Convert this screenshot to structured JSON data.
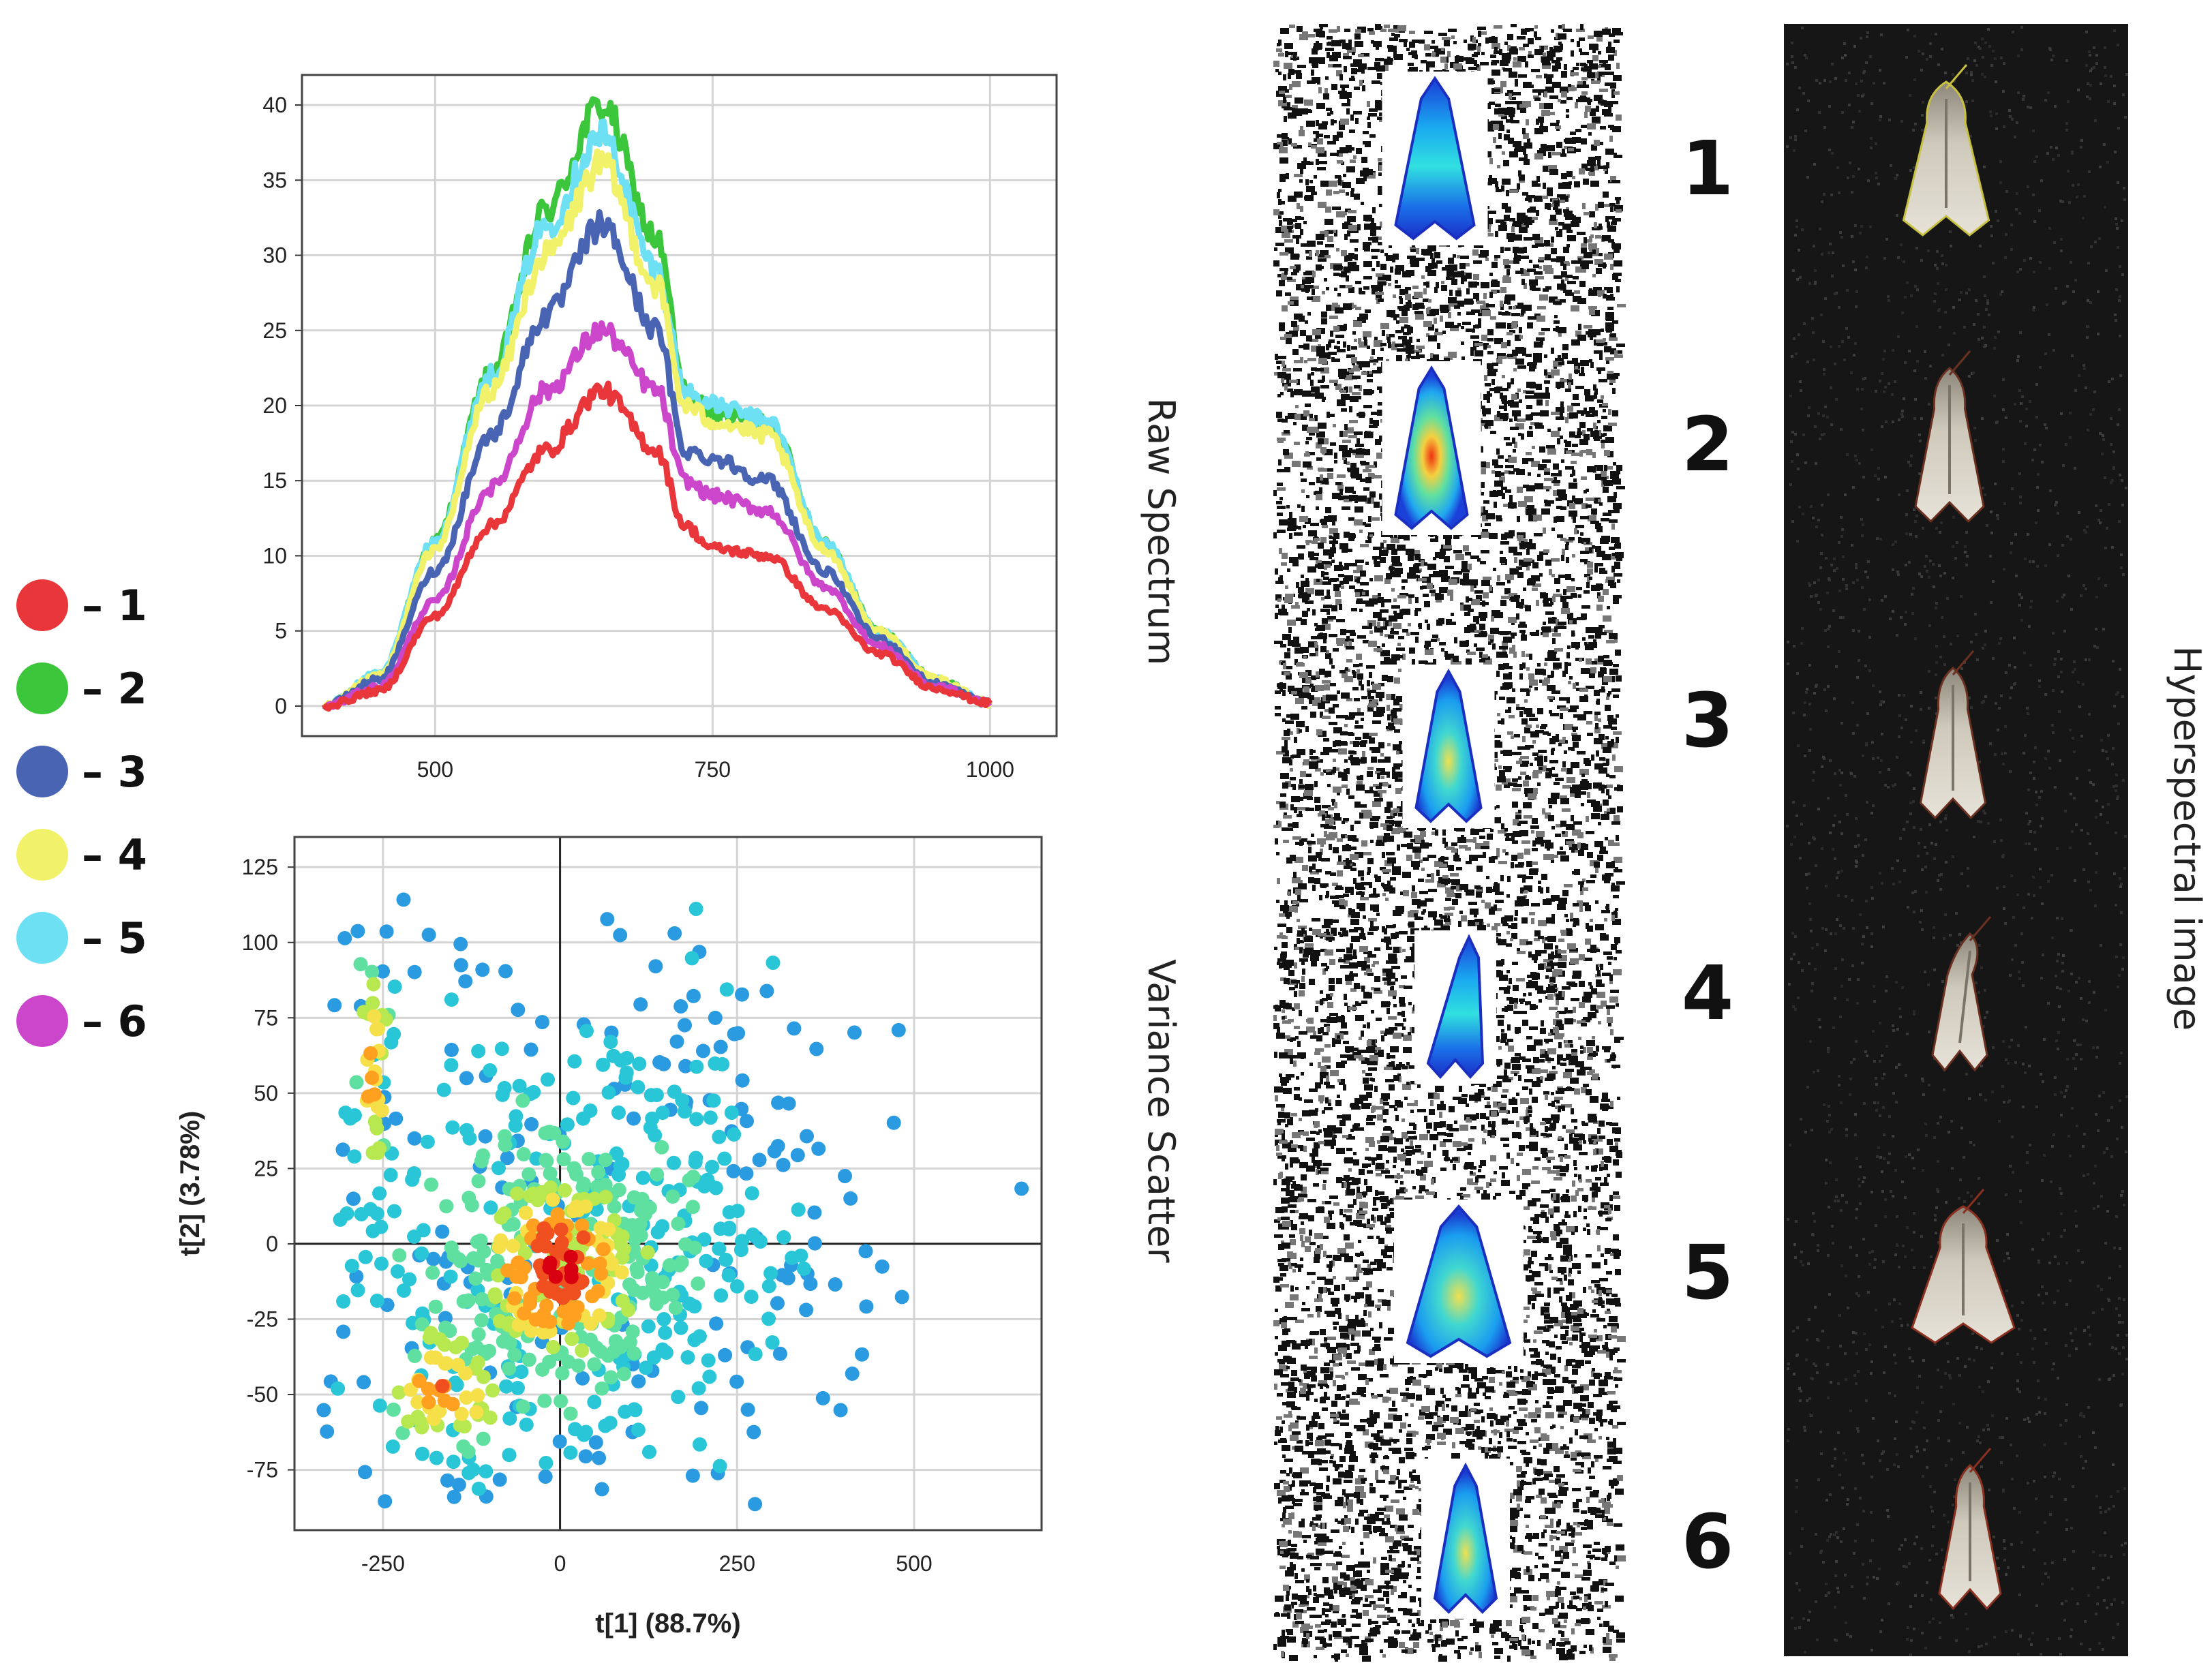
{
  "legend": [
    {
      "label": "– 1",
      "color": "#e8363b"
    },
    {
      "label": "– 2",
      "color": "#3cc63c"
    },
    {
      "label": "– 3",
      "color": "#4a64b4"
    },
    {
      "label": "– 4",
      "color": "#f2f26a"
    },
    {
      "label": "– 5",
      "color": "#6ee0f4"
    },
    {
      "label": "– 6",
      "color": "#cc46cc"
    }
  ],
  "side_labels": {
    "raw_spectrum": "Raw Spectrum",
    "variance_scatter": "Variance Scatter",
    "hyperspectral": "Hyperspectral image"
  },
  "sample_numbers": [
    "1",
    "2",
    "3",
    "4",
    "5",
    "6"
  ],
  "chart_data": [
    {
      "type": "line",
      "title": "",
      "xlabel": "",
      "ylabel": "",
      "xlim": [
        380,
        1060
      ],
      "ylim": [
        -2,
        42
      ],
      "xticks": [
        500,
        750,
        1000
      ],
      "yticks": [
        0,
        5,
        10,
        15,
        20,
        25,
        30,
        35,
        40
      ],
      "grid": true,
      "x": [
        400,
        450,
        500,
        550,
        600,
        650,
        700,
        725,
        750,
        800,
        850,
        900,
        950,
        1000
      ],
      "series": [
        {
          "name": "1",
          "color": "#e8363b",
          "values": [
            0,
            1,
            6,
            12,
            17,
            21,
            17,
            12,
            10.5,
            10,
            6.5,
            3.5,
            1.2,
            0.2
          ]
        },
        {
          "name": "2",
          "color": "#3cc63c",
          "values": [
            0,
            2,
            11,
            22,
            33,
            40,
            31,
            21,
            19.5,
            19,
            11,
            5,
            1.8,
            0.2
          ]
        },
        {
          "name": "3",
          "color": "#4a64b4",
          "values": [
            0,
            1.8,
            9,
            18,
            26,
            32,
            25,
            17,
            16.5,
            15,
            9,
            4.5,
            1.5,
            0.2
          ]
        },
        {
          "name": "4",
          "color": "#f2f26a",
          "values": [
            0,
            2,
            10.5,
            21,
            30,
            36,
            28,
            20,
            19,
            18,
            10.5,
            5,
            1.8,
            0.2
          ]
        },
        {
          "name": "5",
          "color": "#6ee0f4",
          "values": [
            0,
            2.2,
            11,
            22,
            32,
            38,
            29,
            21,
            20,
            19,
            11,
            5,
            1.8,
            0.2
          ]
        },
        {
          "name": "6",
          "color": "#cc46cc",
          "values": [
            0,
            1.3,
            7,
            14.5,
            21,
            25,
            21,
            15,
            14,
            13,
            8,
            4,
            1.3,
            0.2
          ]
        }
      ]
    },
    {
      "type": "scatter",
      "title": "",
      "xlabel": "t[1] (88.7%)",
      "ylabel": "t[2] (3.78%)",
      "xlim": [
        -375,
        680
      ],
      "ylim": [
        -95,
        135
      ],
      "xticks": [
        -250,
        0,
        250,
        500
      ],
      "yticks": [
        -75,
        -50,
        -25,
        0,
        25,
        50,
        75,
        100,
        125
      ],
      "grid": true,
      "color_scale": [
        "#2a9be0",
        "#29c6d8",
        "#5fe0a0",
        "#b8e850",
        "#f5e04a",
        "#ffa020",
        "#f05020",
        "#d80010"
      ],
      "clusters": [
        {
          "cx": 0,
          "cy": -5,
          "sx": 165,
          "sy": 38,
          "n": 380,
          "density": 0.35
        },
        {
          "cx": 0,
          "cy": -8,
          "sx": 75,
          "sy": 20,
          "n": 200,
          "density": 0.82
        },
        {
          "cx": -160,
          "cy": -48,
          "sx": 55,
          "sy": 14,
          "n": 90,
          "density": 0.65
        },
        {
          "cx": -265,
          "cy": 60,
          "sx": 18,
          "sy": 25,
          "n": 45,
          "density": 0.6
        },
        {
          "cx": 150,
          "cy": 15,
          "sx": 140,
          "sy": 40,
          "n": 160,
          "density": 0.12
        }
      ]
    }
  ]
}
